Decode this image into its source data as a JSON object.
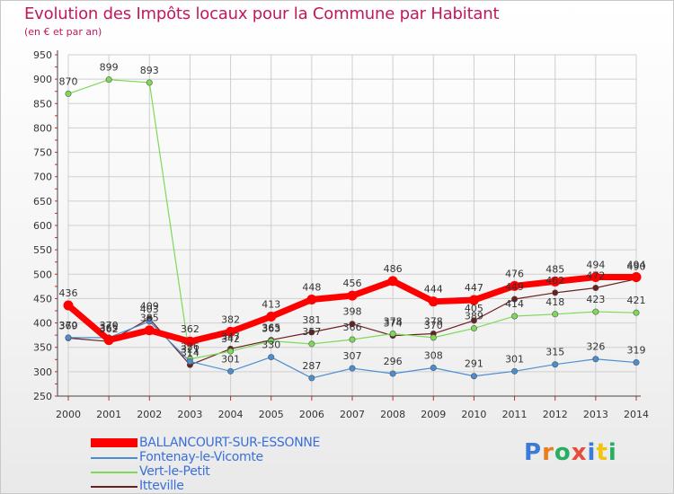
{
  "header": {
    "title": "Evolution des Impôts locaux pour la Commune par Habitant",
    "subtitle": "(en € et par an)"
  },
  "logo": {
    "text": "Proxiti",
    "colors": [
      "#3a7bd5",
      "#e67e22",
      "#27ae60",
      "#e74c3c",
      "#3a7bd5",
      "#f1c40f",
      "#27ae60"
    ]
  },
  "chart_data": {
    "type": "line",
    "title": "Evolution des Impôts locaux pour la Commune par Habitant",
    "subtitle": "(en € et par an)",
    "xlabel": "",
    "ylabel": "",
    "ylim": [
      250,
      950
    ],
    "yticks": [
      250,
      300,
      350,
      400,
      450,
      500,
      550,
      600,
      650,
      700,
      750,
      800,
      850,
      900,
      950
    ],
    "grid": true,
    "legend_position": "bottom-left",
    "x": [
      2000,
      2001,
      2002,
      2003,
      2004,
      2005,
      2006,
      2007,
      2008,
      2009,
      2010,
      2011,
      2012,
      2013,
      2014
    ],
    "series": [
      {
        "name": "BALLANCOURT-SUR-ESSONNE",
        "color": "#ff0000",
        "values": [
          436,
          365,
          385,
          362,
          382,
          413,
          448,
          456,
          486,
          444,
          447,
          476,
          485,
          494,
          494
        ]
      },
      {
        "name": "Fontenay-le-Vicomte",
        "color": "#4a8ed1",
        "values": [
          370,
          370,
          403,
          321,
          301,
          330,
          287,
          307,
          296,
          308,
          291,
          301,
          315,
          326,
          319
        ]
      },
      {
        "name": "Vert-le-Petit",
        "color": "#7ed957",
        "values": [
          870,
          899,
          893,
          326,
          342,
          363,
          357,
          366,
          378,
          370,
          389,
          414,
          418,
          423,
          421
        ]
      },
      {
        "name": "Itteville",
        "color": "#6b1f1f",
        "values": [
          369,
          362,
          409,
          314,
          347,
          365,
          381,
          398,
          374,
          378,
          405,
          449,
          462,
          472,
          490
        ]
      }
    ]
  }
}
